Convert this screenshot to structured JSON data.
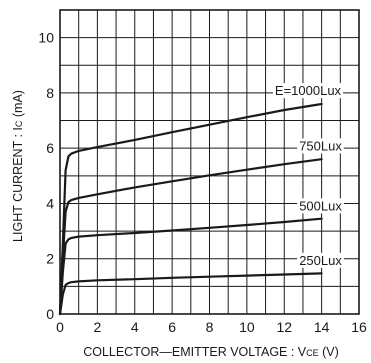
{
  "chart_data": {
    "type": "line",
    "title": "",
    "xlabel": "COLLECTOR-EMITTER VOLTAGE : VCE (V)",
    "xlabel_parts": {
      "main": "COLLECTOR—EMITTER VOLTAGE : V",
      "sub": "CE",
      "unit": " (V)"
    },
    "ylabel": "LIGHT CURRENT : IC (mA)",
    "ylabel_parts": {
      "main": "LIGHT CURRENT : I",
      "sub": "C",
      "unit": " (mA)"
    },
    "xlim": [
      0,
      16
    ],
    "ylim": [
      0,
      11
    ],
    "x_ticks": [
      0,
      2,
      4,
      6,
      8,
      10,
      12,
      14,
      16
    ],
    "y_ticks": [
      0,
      2,
      4,
      6,
      8,
      10
    ],
    "grid": true,
    "legend": "none",
    "series": [
      {
        "name": "E=1000Lux",
        "points": [
          [
            0,
            0
          ],
          [
            0.15,
            2.5
          ],
          [
            0.3,
            5.2
          ],
          [
            0.45,
            5.7
          ],
          [
            0.6,
            5.8
          ],
          [
            1,
            5.9
          ],
          [
            2,
            6.04
          ],
          [
            4,
            6.3
          ],
          [
            6,
            6.58
          ],
          [
            8,
            6.85
          ],
          [
            10,
            7.12
          ],
          [
            12,
            7.38
          ],
          [
            14,
            7.6
          ]
        ]
      },
      {
        "name": "750Lux",
        "points": [
          [
            0,
            0
          ],
          [
            0.15,
            2.0
          ],
          [
            0.3,
            3.7
          ],
          [
            0.45,
            4.05
          ],
          [
            0.6,
            4.12
          ],
          [
            1,
            4.2
          ],
          [
            2,
            4.33
          ],
          [
            4,
            4.58
          ],
          [
            6,
            4.8
          ],
          [
            8,
            5.02
          ],
          [
            10,
            5.22
          ],
          [
            12,
            5.42
          ],
          [
            14,
            5.6
          ]
        ]
      },
      {
        "name": "500Lux",
        "points": [
          [
            0,
            0
          ],
          [
            0.15,
            1.5
          ],
          [
            0.3,
            2.55
          ],
          [
            0.45,
            2.7
          ],
          [
            0.6,
            2.75
          ],
          [
            1,
            2.8
          ],
          [
            2,
            2.85
          ],
          [
            4,
            2.93
          ],
          [
            6,
            3.02
          ],
          [
            8,
            3.12
          ],
          [
            10,
            3.22
          ],
          [
            12,
            3.33
          ],
          [
            14,
            3.45
          ]
        ]
      },
      {
        "name": "250Lux",
        "points": [
          [
            0,
            0
          ],
          [
            0.15,
            0.7
          ],
          [
            0.3,
            1.05
          ],
          [
            0.45,
            1.12
          ],
          [
            0.6,
            1.15
          ],
          [
            1,
            1.18
          ],
          [
            2,
            1.22
          ],
          [
            4,
            1.26
          ],
          [
            6,
            1.31
          ],
          [
            8,
            1.35
          ],
          [
            10,
            1.39
          ],
          [
            12,
            1.43
          ],
          [
            14,
            1.47
          ]
        ]
      }
    ],
    "annotations": [
      {
        "text": "E=1000Lux",
        "x": 11.5,
        "y": 7.92
      },
      {
        "text": "750Lux",
        "x": 12.8,
        "y": 5.92
      },
      {
        "text": "500Lux",
        "x": 12.8,
        "y": 3.75
      },
      {
        "text": "250Lux",
        "x": 12.8,
        "y": 1.78
      }
    ],
    "colors": {
      "line": "#1a1a1a",
      "grid": "#1a1a1a"
    }
  }
}
